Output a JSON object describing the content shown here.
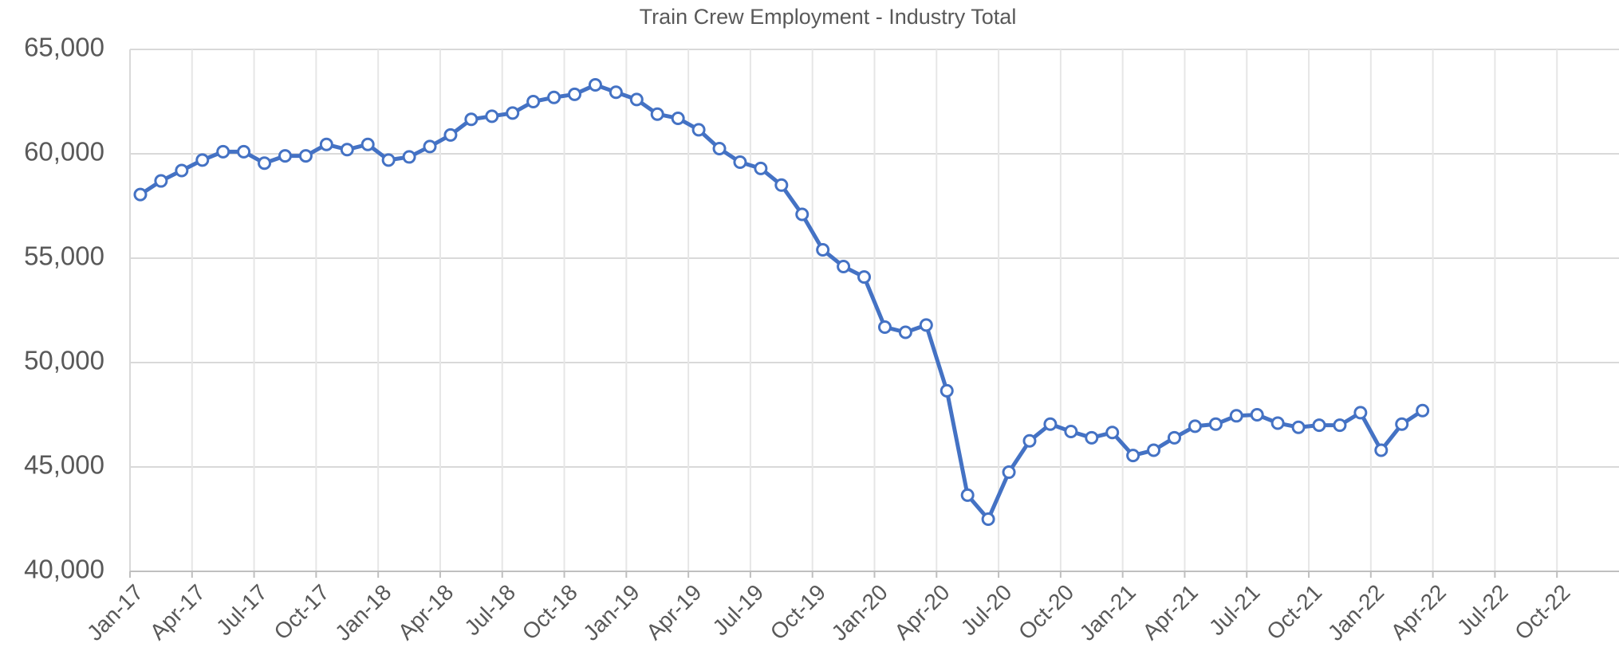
{
  "chart_data": {
    "type": "line",
    "title": "Train Crew Employment - Industry Total",
    "categories": [
      "Jan-17",
      null,
      null,
      "Apr-17",
      null,
      null,
      "Jul-17",
      null,
      null,
      "Oct-17",
      null,
      null,
      "Jan-18",
      null,
      null,
      "Apr-18",
      null,
      null,
      "Jul-18",
      null,
      null,
      "Oct-18",
      null,
      null,
      "Jan-19",
      null,
      null,
      "Apr-19",
      null,
      null,
      "Jul-19",
      null,
      null,
      "Oct-19",
      null,
      null,
      "Jan-20",
      null,
      null,
      "Apr-20",
      null,
      null,
      "Jul-20",
      null,
      null,
      "Oct-20",
      null,
      null,
      "Jan-21",
      null,
      null,
      "Apr-21",
      null,
      null,
      "Jul-21",
      null,
      null,
      "Oct-21",
      null,
      null,
      "Jan-22",
      null,
      null,
      "Apr-22",
      null,
      null,
      "Jul-22",
      null,
      null,
      "Oct-22",
      null,
      null
    ],
    "series": [
      {
        "name": "Train Crew Employment",
        "color": "#4472c4",
        "values": [
          58050,
          58700,
          59200,
          59700,
          60100,
          60100,
          59550,
          59900,
          59900,
          60450,
          60200,
          60450,
          59700,
          59850,
          60350,
          60900,
          61650,
          61800,
          61950,
          62500,
          62700,
          62850,
          63300,
          62950,
          62600,
          61900,
          61700,
          61150,
          60250,
          59600,
          59300,
          58500,
          57100,
          55400,
          54600,
          54100,
          51700,
          51450,
          51800,
          48650,
          43650,
          42500,
          44750,
          46250,
          47050,
          46700,
          46400,
          46650,
          45550,
          45800,
          46400,
          46950,
          47050,
          47450,
          47500,
          47100,
          46900,
          47000,
          47000,
          47600,
          45800,
          47050,
          47700,
          null,
          null,
          null,
          null,
          null,
          null,
          null,
          null,
          null
        ]
      }
    ],
    "ylim": [
      40000,
      65000
    ],
    "yticks": [
      {
        "value": 40000,
        "label": "40,000"
      },
      {
        "value": 45000,
        "label": "45,000"
      },
      {
        "value": 50000,
        "label": "50,000"
      },
      {
        "value": 55000,
        "label": "55,000"
      },
      {
        "value": 60000,
        "label": "60,000"
      },
      {
        "value": 65000,
        "label": "65,000"
      }
    ],
    "grid": true
  }
}
